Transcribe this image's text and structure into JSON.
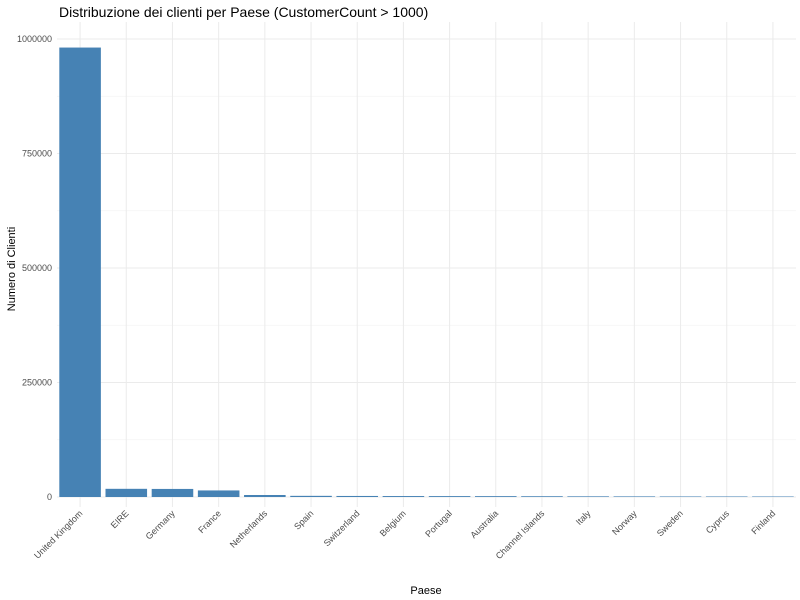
{
  "chart_data": {
    "type": "bar",
    "title": "Distribuzione dei clienti per Paese (CustomerCount > 1000)",
    "xlabel": "Paese",
    "ylabel": "Numero di Clienti",
    "ylim": [
      0,
      1000000
    ],
    "yticks": [
      0,
      250000,
      500000,
      750000,
      1000000
    ],
    "ytick_labels": [
      "0",
      "250000",
      "500000",
      "750000",
      "1000000"
    ],
    "grid": true,
    "bar_color": "#4682B4",
    "categories": [
      "United Kingdom",
      "EIRE",
      "Germany",
      "France",
      "Netherlands",
      "Spain",
      "Switzerland",
      "Belgium",
      "Portugal",
      "Australia",
      "Channel Islands",
      "Italy",
      "Norway",
      "Sweden",
      "Cyprus",
      "Finland"
    ],
    "values": [
      981330,
      17866,
      17624,
      14330,
      4363,
      2532,
      2281,
      2070,
      1954,
      1860,
      1664,
      1428,
      1304,
      1156,
      1136,
      1082
    ]
  }
}
